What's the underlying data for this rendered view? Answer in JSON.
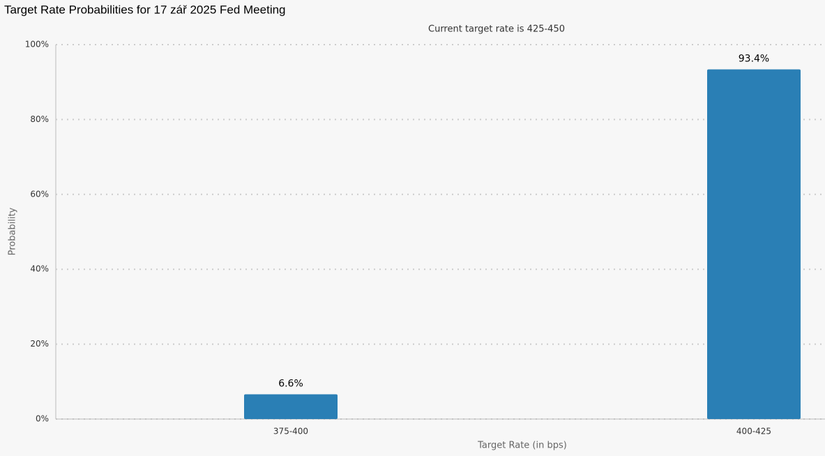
{
  "chart_data": {
    "type": "bar",
    "title": "Target Rate Probabilities for 17 zář 2025 Fed Meeting",
    "subtitle": "Current target rate is 425-450",
    "x_label": "Target Rate (in bps)",
    "y_label": "Probability",
    "categories": [
      "375-400",
      "400-425"
    ],
    "values": [
      6.6,
      93.4
    ],
    "value_labels": [
      "6.6%",
      "93.4%"
    ],
    "color": "#2a7fb5",
    "ylim": [
      0,
      100
    ],
    "yticks": [
      {
        "value": 0,
        "label": "0%"
      },
      {
        "value": 20,
        "label": "20%"
      },
      {
        "value": 40,
        "label": "40%"
      },
      {
        "value": 60,
        "label": "60%"
      },
      {
        "value": 80,
        "label": "80%"
      },
      {
        "value": 100,
        "label": "100%"
      }
    ],
    "grid": true
  }
}
